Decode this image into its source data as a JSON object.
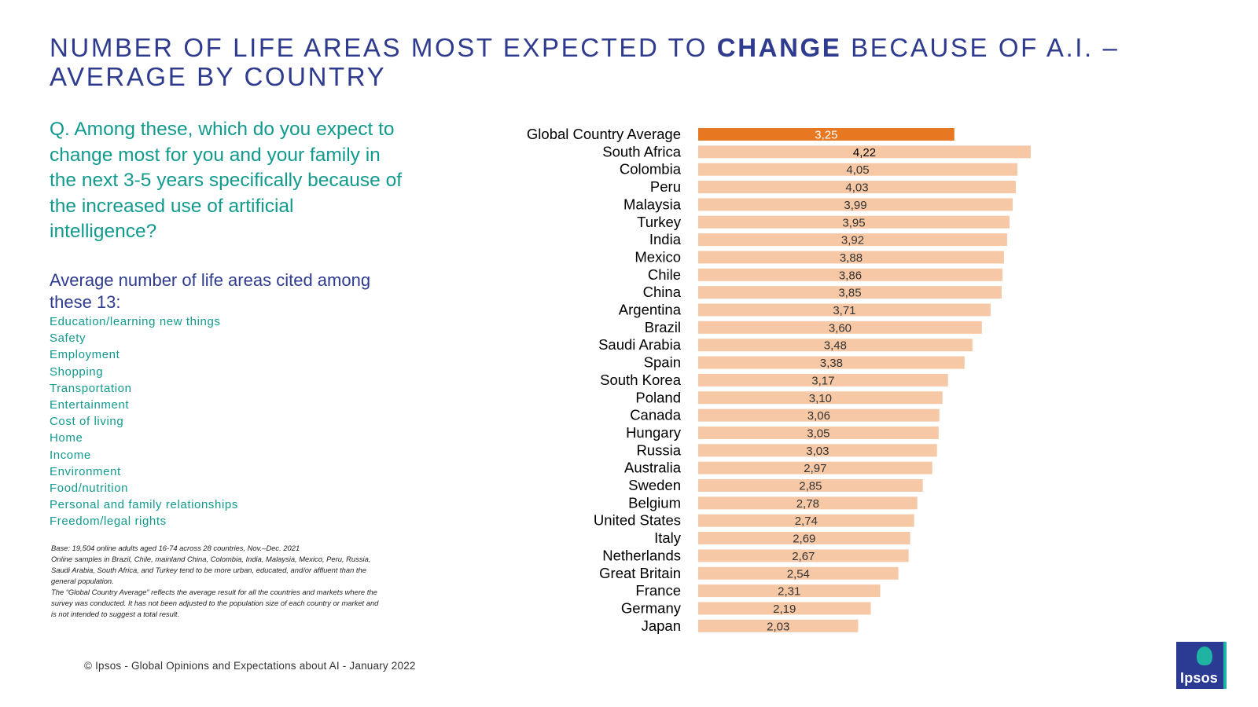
{
  "title": {
    "part1": "NUMBER OF LIFE AREAS MOST EXPECTED TO ",
    "emphasis": "CHANGE",
    "part2": " BECAUSE OF A.I. – AVERAGE BY COUNTRY"
  },
  "question": "Q. Among these, which do you expect to change most for you and your family in the next 3-5 years specifically because of the increased use of artificial intelligence?",
  "subheading": "Average number of life areas cited among these 13:",
  "life_areas": [
    "Education/learning new things",
    "Safety",
    "Employment",
    "Shopping",
    "Transportation",
    "Entertainment",
    "Cost of living",
    "Home",
    "Income",
    "Environment",
    "Food/nutrition",
    "Personal and family relationships",
    "Freedom/legal rights"
  ],
  "base_note": [
    "Base: 19,504 online adults aged 16-74 across 28 countries, Nov.–Dec. 2021",
    "Online samples in Brazil, Chile, mainland China, Colombia, India, Malaysia, Mexico, Peru, Russia, Saudi Arabia, South Africa, and Turkey tend to be more urban, educated, and/or affluent than the general population.",
    "The “Global Country Average” reflects the average result for all the countries and markets where the survey was conducted. It has not been adjusted to the population size of each country or market and is not intended to suggest a total result."
  ],
  "footer": "© Ipsos - Global Opinions and Expectations about AI - January 2022",
  "logo_text": "Ipsos",
  "colors": {
    "title": "#2e3b8f",
    "question": "#119a8e",
    "highlight_bar": "#e87722",
    "bar": "#f7c8a5",
    "logo_bg": "#2b3a93",
    "logo_accent": "#1fb3a3"
  },
  "chart_data": {
    "type": "bar",
    "orientation": "horizontal",
    "highlight_category": "Global Country Average",
    "categories": [
      "Global Country Average",
      "South Africa",
      "Colombia",
      "Peru",
      "Malaysia",
      "Turkey",
      "India",
      "Mexico",
      "Chile",
      "China",
      "Argentina",
      "Brazil",
      "Saudi Arabia",
      "Spain",
      "South Korea",
      "Poland",
      "Canada",
      "Hungary",
      "Russia",
      "Australia",
      "Sweden",
      "Belgium",
      "United States",
      "Italy",
      "Netherlands",
      "Great Britain",
      "France",
      "Germany",
      "Japan"
    ],
    "values": [
      3.25,
      4.22,
      4.05,
      4.03,
      3.99,
      3.95,
      3.92,
      3.88,
      3.86,
      3.85,
      3.71,
      3.6,
      3.48,
      3.38,
      3.17,
      3.1,
      3.06,
      3.05,
      3.03,
      2.97,
      2.85,
      2.78,
      2.74,
      2.69,
      2.67,
      2.54,
      2.31,
      2.19,
      2.03
    ],
    "value_labels": [
      "3,25",
      "4,22",
      "4,05",
      "4,03",
      "3,99",
      "3,95",
      "3,92",
      "3,88",
      "3,86",
      "3,85",
      "3,71",
      "3,60",
      "3,48",
      "3,38",
      "3,17",
      "3,10",
      "3,06",
      "3,05",
      "3,03",
      "2,97",
      "2,85",
      "2,78",
      "2,74",
      "2,69",
      "2,67",
      "2,54",
      "2,31",
      "2,19",
      "2,03"
    ],
    "xlim": [
      0,
      4.22
    ],
    "grid": false,
    "legend": "none"
  }
}
